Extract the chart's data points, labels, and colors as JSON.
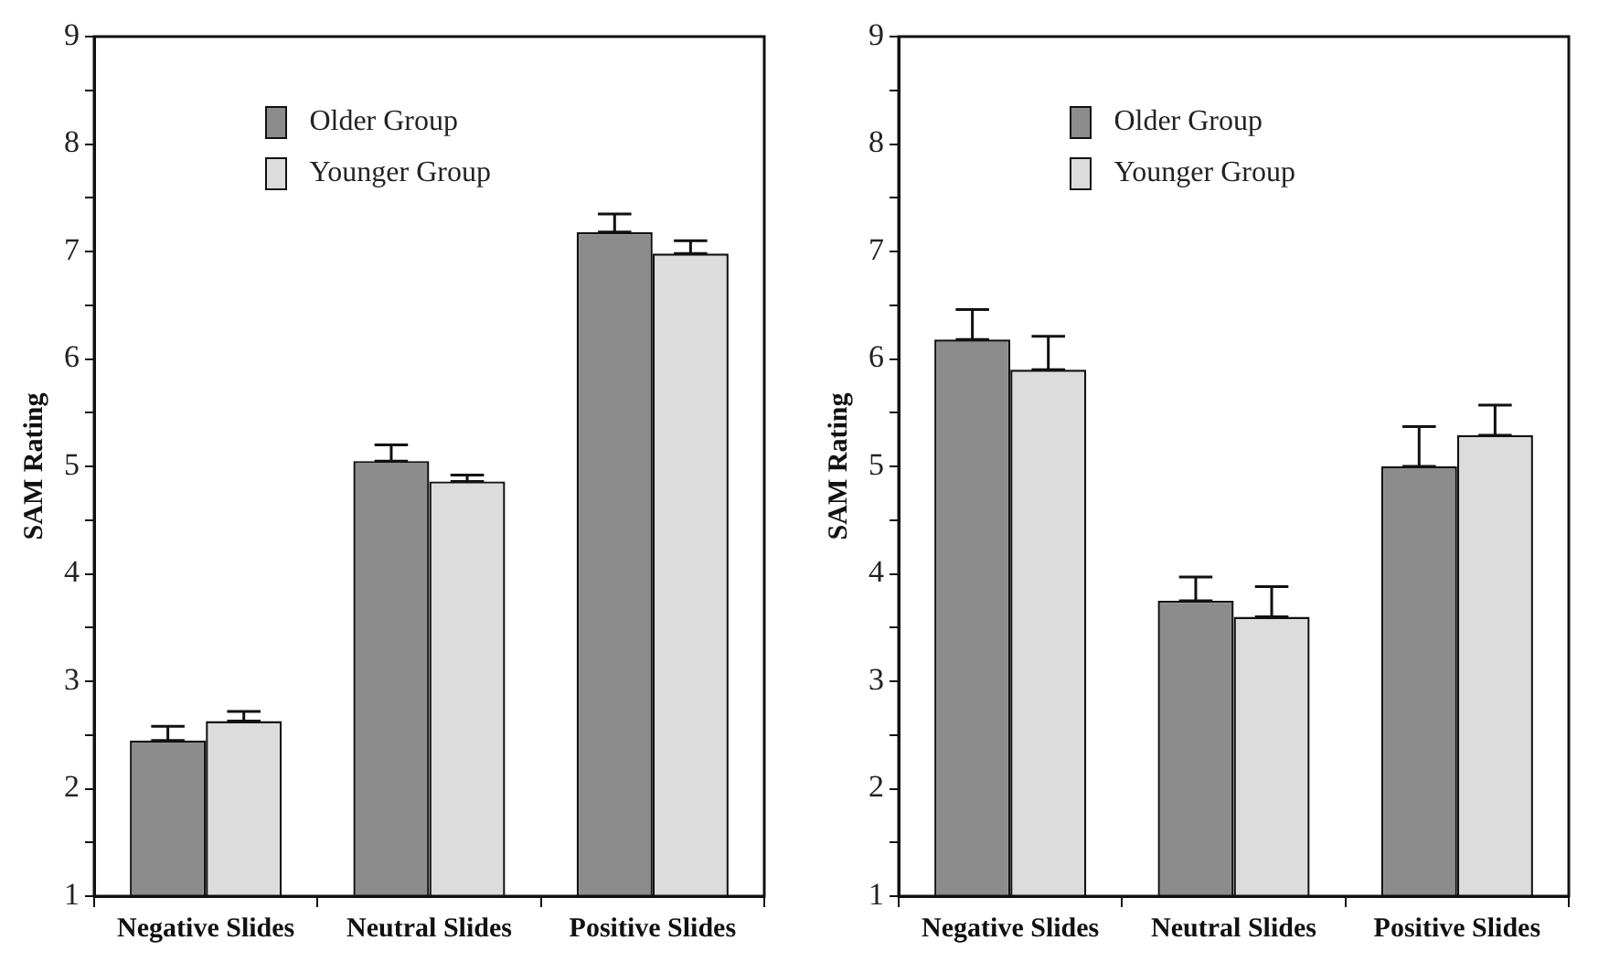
{
  "chart_data": [
    {
      "type": "bar",
      "ylabel": "SAM Rating",
      "categories": [
        "Negative Slides",
        "Neutral Slides",
        "Positive Slides"
      ],
      "series": [
        {
          "name": "Older Group",
          "color": "#8c8c8c",
          "values": [
            2.45,
            5.05,
            7.18
          ],
          "errors": [
            [
              2.45,
              2.58
            ],
            [
              5.05,
              5.2
            ],
            [
              7.18,
              7.35
            ]
          ]
        },
        {
          "name": "Younger Group",
          "color": "#dcdcdc",
          "values": [
            2.63,
            4.86,
            6.98
          ],
          "errors": [
            [
              2.63,
              2.72
            ],
            [
              4.86,
              4.92
            ],
            [
              6.98,
              7.1
            ]
          ]
        }
      ],
      "ylim": [
        1,
        9
      ],
      "yticks": [
        1,
        {
          "value": 1.5,
          "label": null
        },
        2,
        {
          "value": 2.5,
          "label": null
        },
        3,
        {
          "value": 3.5,
          "label": null
        },
        4,
        {
          "value": 4.5,
          "label": null
        },
        5,
        {
          "value": 5.5,
          "label": null
        },
        6,
        {
          "value": 6.5,
          "label": null
        },
        7,
        {
          "value": 7.5,
          "label": null
        },
        8,
        {
          "value": 8.5,
          "label": null
        },
        9
      ],
      "grid": false,
      "legend": "top"
    },
    {
      "type": "bar",
      "ylabel": "SAM Rating",
      "categories": [
        "Negative Slides",
        "Neutral Slides",
        "Positive Slides"
      ],
      "series": [
        {
          "name": "Older Group",
          "color": "#8c8c8c",
          "values": [
            6.18,
            3.75,
            5.0
          ],
          "errors": [
            [
              6.18,
              6.46
            ],
            [
              3.75,
              3.97
            ],
            [
              5.0,
              5.37
            ]
          ]
        },
        {
          "name": "Younger Group",
          "color": "#dcdcdc",
          "values": [
            5.9,
            3.6,
            5.29
          ],
          "errors": [
            [
              5.9,
              6.21
            ],
            [
              3.6,
              3.88
            ],
            [
              5.29,
              5.57
            ]
          ]
        }
      ],
      "ylim": [
        1,
        9
      ],
      "yticks": [
        1,
        {
          "value": 1.5,
          "label": null
        },
        2,
        {
          "value": 2.5,
          "label": null
        },
        3,
        {
          "value": 3.5,
          "label": null
        },
        4,
        {
          "value": 4.5,
          "label": null
        },
        5,
        {
          "value": 5.5,
          "label": null
        },
        6,
        {
          "value": 6.5,
          "label": null
        },
        7,
        {
          "value": 7.5,
          "label": null
        },
        8,
        {
          "value": 8.5,
          "label": null
        },
        9
      ],
      "grid": false,
      "legend": "top"
    }
  ]
}
